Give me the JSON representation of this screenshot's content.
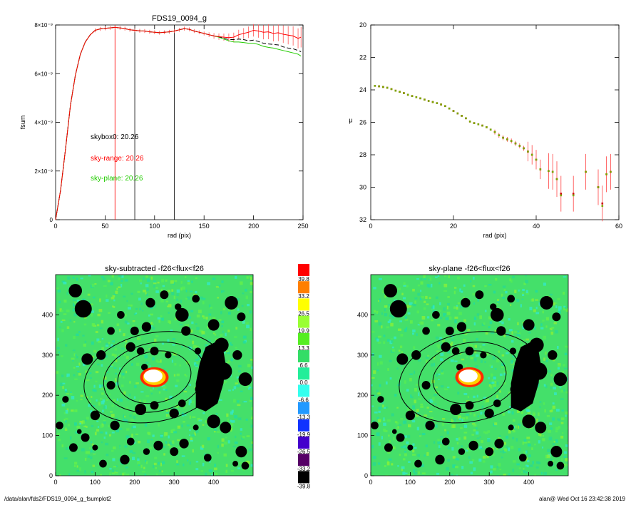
{
  "footer": {
    "left": "/data/alan/fds2/FDS19_0094_g_fsumplot2",
    "right": "alan@  Wed Oct 16 23:42:38 2019"
  },
  "chart_data": [
    {
      "type": "line",
      "title": "FDS19_0094_g",
      "xlabel": "rad (pix)",
      "ylabel": "fsum",
      "xlim": [
        0,
        250
      ],
      "ylim": [
        0,
        8e-09
      ],
      "xticks": [
        "0",
        "50",
        "100",
        "150",
        "200",
        "250"
      ],
      "yticks": [
        "0",
        "2×10⁻⁹",
        "4×10⁻⁹",
        "6×10⁻⁹",
        "8×10⁻⁹"
      ],
      "vertical_lines": [
        {
          "x": 60,
          "color": "#ff0000"
        },
        {
          "x": 80,
          "color": "#000000"
        },
        {
          "x": 120,
          "color": "#000000"
        }
      ],
      "annotations": [
        {
          "text": "skybox0: 20.26",
          "color": "#000000"
        },
        {
          "text": "sky-range: 20.26",
          "color": "#ff0000"
        },
        {
          "text": "sky-plane: 20.26",
          "color": "#22cc00"
        }
      ],
      "x": [
        0,
        5,
        10,
        15,
        20,
        25,
        30,
        35,
        40,
        45,
        50,
        55,
        60,
        65,
        70,
        75,
        80,
        85,
        90,
        95,
        100,
        105,
        110,
        115,
        120,
        125,
        130,
        135,
        140,
        145,
        150,
        155,
        160,
        165,
        170,
        175,
        180,
        185,
        190,
        195,
        200,
        205,
        210,
        215,
        220,
        225,
        230,
        235,
        240,
        245,
        248
      ],
      "series": [
        {
          "color": "#ff0000",
          "values": [
            0,
            1.2,
            2.9,
            4.7,
            5.95,
            6.8,
            7.3,
            7.6,
            7.78,
            7.84,
            7.86,
            7.88,
            7.9,
            7.88,
            7.85,
            7.8,
            7.78,
            7.76,
            7.75,
            7.72,
            7.7,
            7.68,
            7.7,
            7.72,
            7.75,
            7.8,
            7.85,
            7.82,
            7.75,
            7.7,
            7.65,
            7.6,
            7.55,
            7.52,
            7.5,
            7.48,
            7.5,
            7.6,
            7.65,
            7.7,
            7.78,
            7.75,
            7.7,
            7.72,
            7.65,
            7.68,
            7.62,
            7.58,
            7.55,
            7.45,
            7.5
          ]
        },
        {
          "color": "#000000",
          "dash": true,
          "values": [
            0,
            1.2,
            2.9,
            4.7,
            5.95,
            6.8,
            7.3,
            7.6,
            7.78,
            7.84,
            7.86,
            7.88,
            7.9,
            7.88,
            7.85,
            7.8,
            7.78,
            7.76,
            7.75,
            7.72,
            7.7,
            7.68,
            7.7,
            7.72,
            7.75,
            7.8,
            7.85,
            7.82,
            7.75,
            7.7,
            7.65,
            7.6,
            7.55,
            7.52,
            7.45,
            7.4,
            7.4,
            7.42,
            7.4,
            7.35,
            7.38,
            7.32,
            7.25,
            7.22,
            7.2,
            7.18,
            7.1,
            7.05,
            7.02,
            6.95,
            6.9
          ]
        },
        {
          "color": "#22cc00",
          "values": [
            0,
            1.2,
            2.9,
            4.7,
            5.95,
            6.8,
            7.3,
            7.6,
            7.78,
            7.84,
            7.86,
            7.88,
            7.9,
            7.88,
            7.85,
            7.8,
            7.78,
            7.76,
            7.75,
            7.72,
            7.7,
            7.68,
            7.7,
            7.72,
            7.75,
            7.8,
            7.85,
            7.82,
            7.75,
            7.7,
            7.65,
            7.6,
            7.55,
            7.5,
            7.42,
            7.35,
            7.3,
            7.3,
            7.28,
            7.25,
            7.25,
            7.2,
            7.12,
            7.08,
            7.05,
            7.0,
            6.95,
            6.9,
            6.85,
            6.8,
            6.72
          ]
        }
      ]
    },
    {
      "type": "scatter",
      "xlabel": "rad (pix)",
      "ylabel": "μ",
      "xlim": [
        0,
        60
      ],
      "ylim": [
        20,
        32
      ],
      "y_inverted": true,
      "xticks": [
        "0",
        "20",
        "40",
        "60"
      ],
      "yticks": [
        "20",
        "22",
        "24",
        "26",
        "28",
        "30",
        "32"
      ],
      "x": [
        1,
        2,
        3,
        4,
        5,
        6,
        7,
        8,
        9,
        10,
        11,
        12,
        13,
        14,
        15,
        16,
        17,
        18,
        19,
        20,
        21,
        22,
        23,
        24,
        25,
        26,
        27,
        28,
        29,
        30,
        31,
        32,
        33,
        34,
        35,
        36,
        37,
        38,
        39,
        40,
        41,
        43,
        44,
        45,
        46,
        49,
        52,
        55,
        56,
        57,
        58
      ],
      "series": [
        {
          "name": "",
          "color": "#cc0000",
          "values": [
            23.75,
            23.78,
            23.82,
            23.87,
            23.95,
            24.05,
            24.12,
            24.2,
            24.3,
            24.38,
            24.45,
            24.52,
            24.6,
            24.68,
            24.75,
            24.82,
            24.9,
            25.0,
            25.15,
            25.3,
            25.45,
            25.6,
            25.75,
            25.95,
            26.05,
            26.12,
            26.2,
            26.3,
            26.45,
            26.6,
            26.8,
            26.95,
            27.05,
            27.15,
            27.3,
            27.45,
            27.6,
            27.8,
            28.0,
            28.3,
            28.9,
            29.0,
            29.05,
            29.5,
            30.4,
            30.4,
            29.05,
            30.0,
            31.0,
            29.2,
            29.05
          ]
        },
        {
          "name": "",
          "color": "#7aa800",
          "values": [
            23.75,
            23.78,
            23.82,
            23.87,
            23.95,
            24.05,
            24.12,
            24.2,
            24.3,
            24.38,
            24.45,
            24.52,
            24.6,
            24.68,
            24.75,
            24.82,
            24.9,
            25.0,
            25.15,
            25.3,
            25.45,
            25.6,
            25.75,
            25.95,
            26.05,
            26.12,
            26.2,
            26.3,
            26.45,
            26.6,
            26.8,
            26.95,
            27.05,
            27.15,
            27.3,
            27.45,
            27.6,
            27.8,
            28.0,
            28.3,
            28.9,
            29.0,
            29.05,
            29.5,
            30.5,
            30.5,
            29.05,
            30.0,
            31.15,
            29.2,
            29.05
          ]
        }
      ]
    },
    {
      "type": "heatmap",
      "title": "sky-subtracted -f26<flux<f26",
      "xlim": [
        0,
        500
      ],
      "ylim": [
        0,
        500
      ],
      "xticks": [
        "0",
        "100",
        "200",
        "300",
        "400"
      ],
      "yticks": [
        "0",
        "100",
        "200",
        "300",
        "400"
      ]
    },
    {
      "type": "heatmap",
      "title": "sky-plane -f26<flux<f26",
      "xlim": [
        0,
        500
      ],
      "ylim": [
        0,
        500
      ],
      "xticks": [
        "0",
        "100",
        "200",
        "300",
        "400"
      ],
      "yticks": [
        "0",
        "100",
        "200",
        "300",
        "400"
      ]
    },
    {
      "type": "colorbar",
      "labels": [
        "39.8",
        "33.2",
        "26.5",
        "19.9",
        "13.3",
        "6.6",
        "0.0",
        "-6.6",
        "-13.3",
        "-19.9",
        "-26.5",
        "-33.2",
        "-39.8"
      ],
      "colors": [
        "#ff0000",
        "#ff7f00",
        "#ffff00",
        "#99ff33",
        "#55ee22",
        "#33dd66",
        "#22ee99",
        "#33ffee",
        "#2299ff",
        "#1133ff",
        "#4400cc",
        "#550066",
        "#000000"
      ]
    }
  ]
}
